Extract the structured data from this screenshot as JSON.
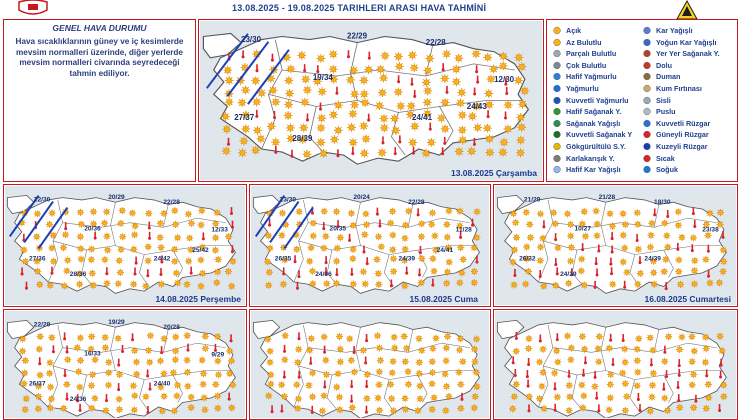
{
  "header": {
    "title": "13.08.2025 - 19.08.2025 TARIHLERI ARASI HAVA TAHMİNİ"
  },
  "info": {
    "heading": "GENEL HAVA DURUMU",
    "text": "Hava sıcaklıklarının güney ve iç kesimlerde mevsim normalleri üzerinde, diğer yerlerde mevsim normalleri civarında seyredeceği tahmin ediliyor."
  },
  "maps": [
    {
      "label": "13.08.2025 Çarşamba",
      "temps": [
        "23/30",
        "22/29",
        "22/28",
        "19/34",
        "12/30",
        "27/37",
        "28/39",
        "24/41",
        "24/43"
      ],
      "wind": "40-60 KM/SAAT"
    },
    {
      "label": "14.08.2025 Perşembe",
      "temps": [
        "22/30",
        "20/29",
        "22/28",
        "20/36",
        "12/33",
        "27/36",
        "28/36",
        "24/42",
        "25/42"
      ],
      "wind": "40-60 KM/SAAT"
    },
    {
      "label": "15.08.2025 Cuma",
      "temps": [
        "23/30",
        "20/24",
        "22/28",
        "20/35",
        "11/28",
        "26/35",
        "24/36",
        "24/39",
        "24/41"
      ],
      "wind": "40-60 KM/SAAT"
    },
    {
      "label": "16.08.2025 Cumartesi",
      "temps": [
        "21/29",
        "21/28",
        "18/30",
        "10/27",
        "23/38",
        "26/32",
        "24/39",
        "24/39"
      ]
    },
    {
      "label": "",
      "temps": [
        "22/29",
        "19/29",
        "20/28",
        "16/33",
        "9/29",
        "26/37",
        "24/36",
        "24/40"
      ]
    },
    {
      "label": "",
      "temps": []
    },
    {
      "label": "",
      "temps": []
    }
  ],
  "legend": {
    "left": [
      "Açık",
      "Az Bulutlu",
      "Parçalı Bulutlu",
      "Çok Bulutlu",
      "Hafif Yağmurlu",
      "Yağmurlu",
      "Kuvvetli Yağmurlu",
      "Hafif Sağanak Y.",
      "Sağanak Yağışlı",
      "Kuvvetli Sağanak Y",
      "Gökgürültülü S.Y.",
      "Karlakarışık Y.",
      "Hafif Kar Yağışlı"
    ],
    "right": [
      "Kar Yağışlı",
      "Yoğun Kar Yağışlı",
      "Yer Yer Sağanak Y.",
      "Dolu",
      "Duman",
      "Kum Fırtınası",
      "Sisli",
      "Puslu",
      "Kuvvetli Rüzgar",
      "Güneyli Rüzgar",
      "Kuzeyli Rüzgar",
      "Sıcak",
      "Soğuk"
    ]
  },
  "colors": {
    "frame": "#c8171f",
    "text": "#1f3f8f",
    "land": "#ffffff",
    "sea": "#dfe6ec",
    "sun": "#f5a623"
  }
}
